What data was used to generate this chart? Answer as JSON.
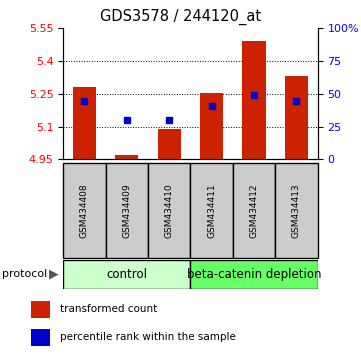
{
  "title": "GDS3578 / 244120_at",
  "samples": [
    "GSM434408",
    "GSM434409",
    "GSM434410",
    "GSM434411",
    "GSM434412",
    "GSM434413"
  ],
  "bar_bottoms": [
    4.95,
    4.95,
    4.95,
    4.95,
    4.95,
    4.95
  ],
  "bar_tops": [
    5.28,
    4.97,
    5.09,
    5.255,
    5.49,
    5.33
  ],
  "blue_values": [
    5.215,
    5.13,
    5.13,
    5.195,
    5.245,
    5.215
  ],
  "ylim": [
    4.95,
    5.55
  ],
  "yticks_left": [
    4.95,
    5.1,
    5.25,
    5.4,
    5.55
  ],
  "yticks_right": [
    0,
    25,
    50,
    75,
    100
  ],
  "ytick_labels_right": [
    "0",
    "25",
    "50",
    "75",
    "100%"
  ],
  "bar_color": "#cc2200",
  "blue_color": "#0000cc",
  "grid_lines": [
    5.1,
    5.25,
    5.4
  ],
  "control_label": "control",
  "treatment_label": "beta-catenin depletion",
  "control_bg": "#ccffcc",
  "treatment_bg": "#66ff66",
  "protocol_label": "protocol",
  "legend_red": "transformed count",
  "legend_blue": "percentile rank within the sample",
  "sample_bg": "#cccccc",
  "figsize": [
    3.61,
    3.54
  ],
  "dpi": 100
}
